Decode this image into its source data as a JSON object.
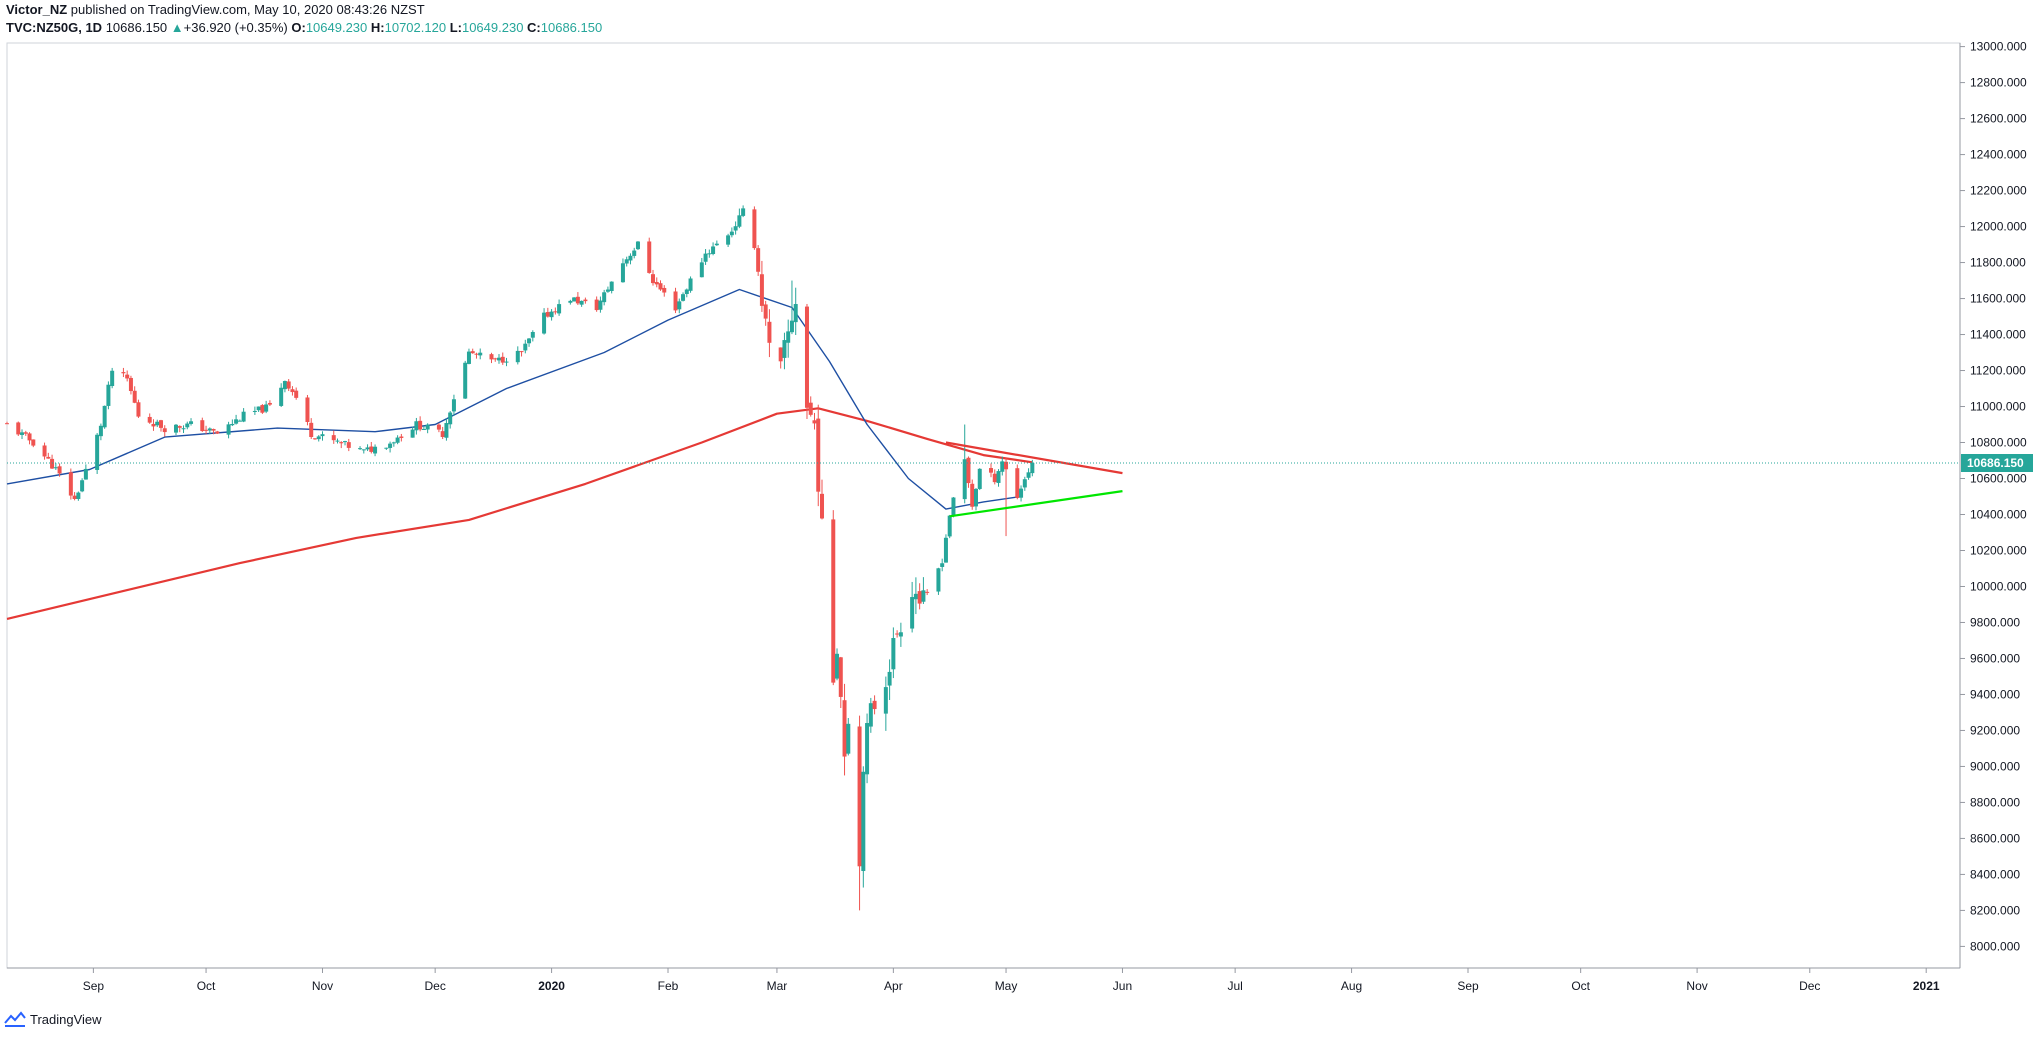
{
  "header": {
    "author": "Victor_NZ",
    "published": "published on TradingView.com, May 10, 2020 08:43:26 NZST"
  },
  "ohlc": {
    "symbol": "TVC:NZ50G, 1D",
    "price": "10686.150",
    "change": "+36.920 (+0.35%)",
    "o_label": "O:",
    "o": "10649.230",
    "h_label": "H:",
    "h": "10702.120",
    "l_label": "L:",
    "l": "10649.230",
    "c_label": "C:",
    "c": "10686.150"
  },
  "footer": {
    "brand": "TradingView"
  },
  "colors": {
    "up": "#26a69a",
    "down": "#ef5350",
    "ma_long": "#e53935",
    "ma_short": "#1e4fa3",
    "trend_upper": "#e53935",
    "trend_lower": "#00e600",
    "last_price_bg": "#26a69a"
  },
  "chart_data": {
    "type": "candlestick",
    "title": "",
    "ylim": [
      7880,
      13020
    ],
    "y_ticks": [
      "8000.000",
      "8200.000",
      "8400.000",
      "8600.000",
      "8800.000",
      "9000.000",
      "9200.000",
      "9400.000",
      "9600.000",
      "9800.000",
      "10000.000",
      "10200.000",
      "10400.000",
      "10600.000",
      "10800.000",
      "11000.000",
      "11200.000",
      "11400.000",
      "11600.000",
      "11800.000",
      "12000.000",
      "12200.000",
      "12400.000",
      "12600.000",
      "12800.000",
      "13000.000"
    ],
    "x_ticks": [
      {
        "label": "Sep",
        "date": "2019-09-01"
      },
      {
        "label": "Oct",
        "date": "2019-10-01"
      },
      {
        "label": "Nov",
        "date": "2019-11-01"
      },
      {
        "label": "Dec",
        "date": "2019-12-01"
      },
      {
        "label": "2020",
        "date": "2020-01-01",
        "bold": true
      },
      {
        "label": "Feb",
        "date": "2020-02-01"
      },
      {
        "label": "Mar",
        "date": "2020-03-01"
      },
      {
        "label": "Apr",
        "date": "2020-04-01"
      },
      {
        "label": "May",
        "date": "2020-05-01"
      },
      {
        "label": "Jun",
        "date": "2020-06-01"
      },
      {
        "label": "Jul",
        "date": "2020-07-01"
      },
      {
        "label": "Aug",
        "date": "2020-08-01"
      },
      {
        "label": "Sep",
        "date": "2020-09-01"
      },
      {
        "label": "Oct",
        "date": "2020-10-01"
      },
      {
        "label": "Nov",
        "date": "2020-11-01"
      },
      {
        "label": "Dec",
        "date": "2020-12-01"
      },
      {
        "label": "2021",
        "date": "2021-01-01",
        "bold": true
      }
    ],
    "x_range": [
      "2019-08-09",
      "2021-01-10"
    ],
    "last_price": "10686.150",
    "last_price_value": 10686.15,
    "close_keypoints": [
      [
        "2019-08-09",
        10900
      ],
      [
        "2019-08-16",
        10800
      ],
      [
        "2019-08-22",
        10650
      ],
      [
        "2019-08-27",
        10480
      ],
      [
        "2019-08-31",
        10700
      ],
      [
        "2019-09-03",
        10900
      ],
      [
        "2019-09-06",
        11200
      ],
      [
        "2019-09-10",
        11150
      ],
      [
        "2019-09-13",
        10950
      ],
      [
        "2019-09-20",
        10880
      ],
      [
        "2019-09-27",
        10900
      ],
      [
        "2019-10-04",
        10850
      ],
      [
        "2019-10-11",
        10950
      ],
      [
        "2019-10-18",
        11000
      ],
      [
        "2019-10-22",
        11150
      ],
      [
        "2019-10-25",
        11050
      ],
      [
        "2019-10-29",
        10850
      ],
      [
        "2019-11-05",
        10800
      ],
      [
        "2019-11-12",
        10750
      ],
      [
        "2019-11-19",
        10800
      ],
      [
        "2019-11-26",
        10900
      ],
      [
        "2019-12-03",
        10850
      ],
      [
        "2019-12-06",
        11050
      ],
      [
        "2019-12-10",
        11300
      ],
      [
        "2019-12-17",
        11250
      ],
      [
        "2019-12-24",
        11300
      ],
      [
        "2019-12-30",
        11500
      ],
      [
        "2020-01-06",
        11600
      ],
      [
        "2020-01-13",
        11550
      ],
      [
        "2020-01-20",
        11800
      ],
      [
        "2020-01-24",
        11900
      ],
      [
        "2020-01-28",
        11700
      ],
      [
        "2020-02-03",
        11550
      ],
      [
        "2020-02-07",
        11700
      ],
      [
        "2020-02-11",
        11850
      ],
      [
        "2020-02-14",
        11900
      ],
      [
        "2020-02-18",
        11980
      ],
      [
        "2020-02-21",
        12080
      ],
      [
        "2020-02-24",
        11900
      ],
      [
        "2020-02-26",
        11600
      ],
      [
        "2020-02-28",
        11300
      ],
      [
        "2020-03-02",
        11200
      ],
      [
        "2020-03-04",
        11400
      ],
      [
        "2020-03-06",
        11600
      ],
      [
        "2020-03-09",
        11000
      ],
      [
        "2020-03-11",
        10900
      ],
      [
        "2020-03-13",
        10300
      ],
      [
        "2020-03-16",
        9500
      ],
      [
        "2020-03-17",
        9700
      ],
      [
        "2020-03-19",
        9100
      ],
      [
        "2020-03-20",
        9300
      ],
      [
        "2020-03-23",
        8450
      ],
      [
        "2020-03-24",
        9050
      ],
      [
        "2020-03-26",
        9300
      ],
      [
        "2020-03-30",
        9500
      ],
      [
        "2020-04-02",
        9750
      ],
      [
        "2020-04-06",
        10000
      ],
      [
        "2020-04-09",
        9900
      ],
      [
        "2020-04-14",
        10150
      ],
      [
        "2020-04-16",
        10400
      ],
      [
        "2020-04-20",
        10700
      ],
      [
        "2020-04-22",
        10450
      ],
      [
        "2020-04-24",
        10650
      ],
      [
        "2020-04-28",
        10600
      ],
      [
        "2020-04-30",
        10700
      ],
      [
        "2020-05-04",
        10500
      ],
      [
        "2020-05-06",
        10600
      ],
      [
        "2020-05-08",
        10686
      ]
    ],
    "spike_lows": [
      [
        "2020-03-23",
        8200
      ],
      [
        "2020-03-19",
        8950
      ],
      [
        "2020-05-01",
        10280
      ]
    ],
    "spike_highs": [
      [
        "2020-02-20",
        12100
      ],
      [
        "2020-04-20",
        10900
      ],
      [
        "2020-03-05",
        11700
      ]
    ],
    "series": [
      {
        "kind": "ma_long",
        "points": [
          [
            "2019-08-09",
            9820
          ],
          [
            "2019-09-10",
            9980
          ],
          [
            "2019-10-10",
            10130
          ],
          [
            "2019-11-10",
            10270
          ],
          [
            "2019-12-10",
            10370
          ],
          [
            "2020-01-10",
            10570
          ],
          [
            "2020-02-10",
            10800
          ],
          [
            "2020-03-01",
            10960
          ],
          [
            "2020-03-12",
            10990
          ],
          [
            "2020-03-25",
            10920
          ],
          [
            "2020-04-10",
            10820
          ],
          [
            "2020-04-25",
            10730
          ],
          [
            "2020-05-08",
            10690
          ]
        ]
      },
      {
        "kind": "ma_short",
        "points": [
          [
            "2019-08-09",
            10570
          ],
          [
            "2019-08-31",
            10650
          ],
          [
            "2019-09-20",
            10830
          ],
          [
            "2019-10-20",
            10880
          ],
          [
            "2019-11-15",
            10860
          ],
          [
            "2019-12-01",
            10900
          ],
          [
            "2019-12-20",
            11100
          ],
          [
            "2020-01-15",
            11300
          ],
          [
            "2020-02-01",
            11480
          ],
          [
            "2020-02-20",
            11650
          ],
          [
            "2020-03-05",
            11550
          ],
          [
            "2020-03-15",
            11250
          ],
          [
            "2020-03-25",
            10900
          ],
          [
            "2020-04-05",
            10600
          ],
          [
            "2020-04-15",
            10430
          ],
          [
            "2020-04-25",
            10470
          ],
          [
            "2020-05-05",
            10500
          ]
        ]
      }
    ],
    "trendlines": [
      {
        "kind": "upper",
        "from": [
          "2020-04-15",
          10800
        ],
        "to": [
          "2020-06-01",
          10630
        ]
      },
      {
        "kind": "lower",
        "from": [
          "2020-04-16",
          10390
        ],
        "to": [
          "2020-06-01",
          10530
        ]
      }
    ]
  }
}
